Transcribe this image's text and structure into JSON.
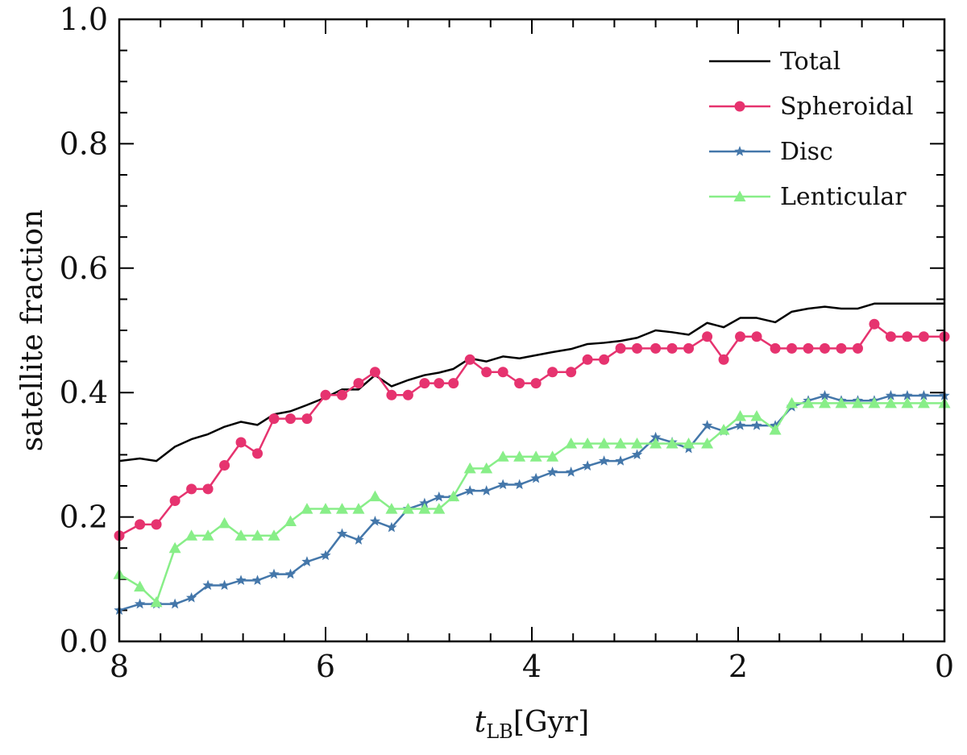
{
  "chart_data": {
    "type": "line",
    "title": "",
    "xlabel_main": "t",
    "xlabel_sub": "LB",
    "xlabel_unit": "[Gyr]",
    "ylabel": "satellite fraction",
    "xlim": [
      8,
      0
    ],
    "ylim": [
      0.0,
      1.0
    ],
    "xticks": [
      8,
      6,
      4,
      2,
      0
    ],
    "xtick_labels": [
      "8",
      "6",
      "4",
      "2",
      "0"
    ],
    "yticks": [
      0.0,
      0.2,
      0.4,
      0.6,
      0.8,
      1.0
    ],
    "ytick_labels": [
      "0.0",
      "0.2",
      "0.4",
      "0.6",
      "0.8",
      "1.0"
    ],
    "legend_position": "top-right",
    "x": [
      8.0,
      7.8,
      7.64,
      7.46,
      7.3,
      7.14,
      6.98,
      6.82,
      6.66,
      6.5,
      6.34,
      6.18,
      6.0,
      5.84,
      5.68,
      5.52,
      5.36,
      5.2,
      5.04,
      4.9,
      4.76,
      4.6,
      4.44,
      4.28,
      4.12,
      3.96,
      3.8,
      3.62,
      3.46,
      3.3,
      3.14,
      2.98,
      2.8,
      2.64,
      2.48,
      2.3,
      2.14,
      1.98,
      1.82,
      1.64,
      1.48,
      1.32,
      1.16,
      1.0,
      0.84,
      0.68,
      0.52,
      0.36,
      0.2,
      0.0
    ],
    "series": [
      {
        "name": "Total",
        "color": "#000000",
        "marker": "none",
        "values": [
          0.29,
          0.294,
          0.29,
          0.313,
          0.325,
          0.333,
          0.345,
          0.353,
          0.348,
          0.365,
          0.37,
          0.38,
          0.392,
          0.405,
          0.405,
          0.428,
          0.41,
          0.42,
          0.428,
          0.432,
          0.438,
          0.455,
          0.45,
          0.458,
          0.455,
          0.46,
          0.465,
          0.47,
          0.478,
          0.48,
          0.483,
          0.488,
          0.5,
          0.497,
          0.493,
          0.512,
          0.505,
          0.52,
          0.52,
          0.513,
          0.53,
          0.535,
          0.538,
          0.535,
          0.535,
          0.543,
          0.543,
          0.543,
          0.543,
          0.543
        ]
      },
      {
        "name": "Spheroidal",
        "color": "#e6336f",
        "marker": "circle",
        "values": [
          0.17,
          0.188,
          0.188,
          0.226,
          0.245,
          0.245,
          0.283,
          0.32,
          0.302,
          0.358,
          0.358,
          0.358,
          0.396,
          0.396,
          0.415,
          0.433,
          0.396,
          0.396,
          0.415,
          0.415,
          0.415,
          0.453,
          0.433,
          0.433,
          0.415,
          0.415,
          0.433,
          0.433,
          0.453,
          0.453,
          0.471,
          0.471,
          0.471,
          0.471,
          0.471,
          0.49,
          0.453,
          0.49,
          0.49,
          0.471,
          0.471,
          0.471,
          0.471,
          0.471,
          0.471,
          0.51,
          0.49,
          0.49,
          0.49,
          0.49
        ]
      },
      {
        "name": "Disc",
        "color": "#4477aa",
        "marker": "star",
        "values": [
          0.05,
          0.06,
          0.06,
          0.06,
          0.07,
          0.09,
          0.09,
          0.098,
          0.098,
          0.108,
          0.108,
          0.128,
          0.138,
          0.173,
          0.163,
          0.193,
          0.183,
          0.213,
          0.222,
          0.232,
          0.232,
          0.242,
          0.242,
          0.252,
          0.252,
          0.262,
          0.272,
          0.272,
          0.282,
          0.29,
          0.29,
          0.3,
          0.328,
          0.32,
          0.31,
          0.347,
          0.338,
          0.347,
          0.347,
          0.347,
          0.377,
          0.387,
          0.395,
          0.387,
          0.387,
          0.387,
          0.395,
          0.395,
          0.395,
          0.395
        ]
      },
      {
        "name": "Lenticular",
        "color": "#88ee88",
        "marker": "triangle",
        "values": [
          0.108,
          0.088,
          0.063,
          0.15,
          0.17,
          0.17,
          0.19,
          0.17,
          0.17,
          0.17,
          0.193,
          0.213,
          0.213,
          0.213,
          0.213,
          0.233,
          0.213,
          0.213,
          0.213,
          0.213,
          0.233,
          0.278,
          0.278,
          0.297,
          0.297,
          0.297,
          0.297,
          0.318,
          0.318,
          0.318,
          0.318,
          0.318,
          0.318,
          0.318,
          0.318,
          0.318,
          0.34,
          0.362,
          0.362,
          0.34,
          0.383,
          0.383,
          0.383,
          0.383,
          0.383,
          0.383,
          0.383,
          0.383,
          0.383,
          0.383
        ]
      }
    ]
  }
}
